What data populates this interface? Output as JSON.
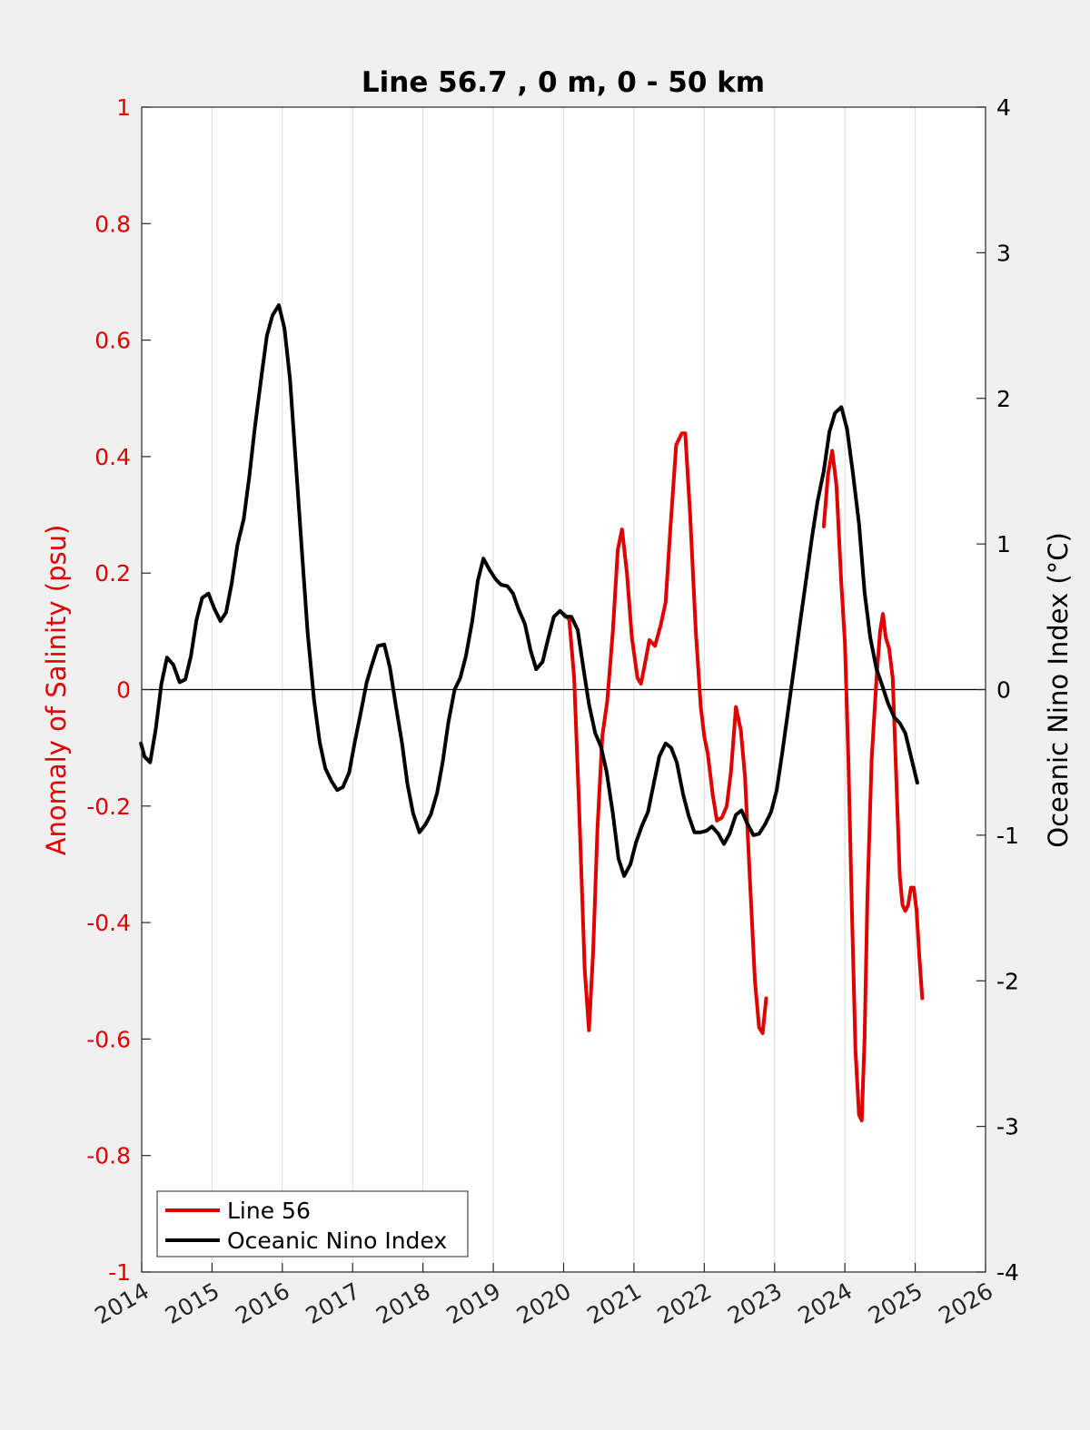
{
  "chart_data": {
    "type": "line",
    "title": "Line 56.7 , 0 m, 0 - 50 km",
    "x_axis": {
      "range": [
        2014,
        2026
      ],
      "ticks": [
        "2014",
        "2015",
        "2016",
        "2017",
        "2018",
        "2019",
        "2020",
        "2021",
        "2022",
        "2023",
        "2024",
        "2025",
        "2026"
      ],
      "grid": true
    },
    "y_left": {
      "label": "Anomaly of Salinity (psu)",
      "range": [
        -1,
        1
      ],
      "ticks": [
        "-1",
        "-0.8",
        "-0.6",
        "-0.4",
        "-0.2",
        "0",
        "0.2",
        "0.4",
        "0.6",
        "0.8",
        "1"
      ],
      "color": "#e00000"
    },
    "y_right": {
      "label": "Oceanic Nino Index (°C)",
      "range": [
        -4,
        4
      ],
      "ticks": [
        "-4",
        "-3",
        "-2",
        "-1",
        "0",
        "1",
        "2",
        "3",
        "4"
      ],
      "color": "#000000"
    },
    "zero_line": true,
    "legend_position": "bottom-left",
    "series": [
      {
        "name": "Line 56",
        "axis": "left",
        "color": "#e00000",
        "segments": [
          [
            [
              2020.0,
              0.13
            ],
            [
              2020.08,
              0.12
            ],
            [
              2020.15,
              0.02
            ],
            [
              2020.22,
              -0.2
            ],
            [
              2020.3,
              -0.48
            ],
            [
              2020.36,
              -0.585
            ],
            [
              2020.42,
              -0.45
            ],
            [
              2020.48,
              -0.24
            ],
            [
              2020.55,
              -0.08
            ],
            [
              2020.62,
              -0.02
            ],
            [
              2020.7,
              0.1
            ],
            [
              2020.77,
              0.24
            ],
            [
              2020.83,
              0.275
            ],
            [
              2020.9,
              0.2
            ],
            [
              2020.97,
              0.09
            ],
            [
              2021.05,
              0.02
            ],
            [
              2021.1,
              0.01
            ],
            [
              2021.15,
              0.04
            ],
            [
              2021.22,
              0.085
            ],
            [
              2021.3,
              0.075
            ],
            [
              2021.38,
              0.11
            ],
            [
              2021.45,
              0.15
            ],
            [
              2021.52,
              0.28
            ],
            [
              2021.6,
              0.42
            ],
            [
              2021.68,
              0.44
            ],
            [
              2021.73,
              0.44
            ],
            [
              2021.8,
              0.3
            ],
            [
              2021.88,
              0.1
            ],
            [
              2021.95,
              -0.03
            ],
            [
              2022.0,
              -0.08
            ],
            [
              2022.05,
              -0.11
            ],
            [
              2022.12,
              -0.18
            ],
            [
              2022.18,
              -0.225
            ],
            [
              2022.25,
              -0.22
            ],
            [
              2022.32,
              -0.2
            ],
            [
              2022.38,
              -0.14
            ],
            [
              2022.45,
              -0.03
            ],
            [
              2022.52,
              -0.07
            ],
            [
              2022.58,
              -0.15
            ],
            [
              2022.65,
              -0.33
            ],
            [
              2022.72,
              -0.5
            ],
            [
              2022.78,
              -0.58
            ],
            [
              2022.83,
              -0.59
            ],
            [
              2022.88,
              -0.53
            ]
          ],
          [
            [
              2023.7,
              0.28
            ],
            [
              2023.76,
              0.37
            ],
            [
              2023.82,
              0.41
            ],
            [
              2023.88,
              0.35
            ],
            [
              2023.95,
              0.18
            ],
            [
              2024.0,
              0.08
            ],
            [
              2024.05,
              -0.12
            ],
            [
              2024.1,
              -0.38
            ],
            [
              2024.15,
              -0.62
            ],
            [
              2024.2,
              -0.73
            ],
            [
              2024.24,
              -0.74
            ],
            [
              2024.28,
              -0.6
            ],
            [
              2024.32,
              -0.36
            ],
            [
              2024.38,
              -0.12
            ],
            [
              2024.45,
              0.02
            ],
            [
              2024.5,
              0.1
            ],
            [
              2024.54,
              0.13
            ],
            [
              2024.58,
              0.09
            ],
            [
              2024.63,
              0.07
            ],
            [
              2024.68,
              0.02
            ],
            [
              2024.73,
              -0.15
            ],
            [
              2024.78,
              -0.32
            ],
            [
              2024.82,
              -0.37
            ],
            [
              2024.86,
              -0.38
            ],
            [
              2024.9,
              -0.37
            ],
            [
              2024.94,
              -0.34
            ],
            [
              2024.98,
              -0.34
            ],
            [
              2025.02,
              -0.38
            ],
            [
              2025.06,
              -0.46
            ],
            [
              2025.1,
              -0.53
            ]
          ]
        ]
      },
      {
        "name": "Oceanic Nino Index",
        "axis": "right",
        "color": "#000000",
        "segments": [
          [
            [
              2013.99,
              -0.37
            ],
            [
              2014.04,
              -0.46
            ],
            [
              2014.12,
              -0.5
            ],
            [
              2014.2,
              -0.27
            ],
            [
              2014.28,
              0.04
            ],
            [
              2014.36,
              0.22
            ],
            [
              2014.45,
              0.17
            ],
            [
              2014.54,
              0.05
            ],
            [
              2014.62,
              0.07
            ],
            [
              2014.7,
              0.23
            ],
            [
              2014.78,
              0.48
            ],
            [
              2014.86,
              0.63
            ],
            [
              2014.95,
              0.66
            ],
            [
              2015.03,
              0.56
            ],
            [
              2015.12,
              0.47
            ],
            [
              2015.2,
              0.53
            ],
            [
              2015.28,
              0.73
            ],
            [
              2015.36,
              0.99
            ],
            [
              2015.45,
              1.17
            ],
            [
              2015.53,
              1.46
            ],
            [
              2015.61,
              1.8
            ],
            [
              2015.7,
              2.14
            ],
            [
              2015.78,
              2.43
            ],
            [
              2015.86,
              2.57
            ],
            [
              2015.95,
              2.64
            ],
            [
              2016.03,
              2.48
            ],
            [
              2016.11,
              2.13
            ],
            [
              2016.2,
              1.5
            ],
            [
              2016.28,
              0.94
            ],
            [
              2016.36,
              0.39
            ],
            [
              2016.45,
              -0.07
            ],
            [
              2016.53,
              -0.36
            ],
            [
              2016.61,
              -0.54
            ],
            [
              2016.7,
              -0.63
            ],
            [
              2016.78,
              -0.69
            ],
            [
              2016.86,
              -0.67
            ],
            [
              2016.95,
              -0.57
            ],
            [
              2017.03,
              -0.36
            ],
            [
              2017.11,
              -0.17
            ],
            [
              2017.2,
              0.05
            ],
            [
              2017.28,
              0.18
            ],
            [
              2017.36,
              0.3
            ],
            [
              2017.45,
              0.31
            ],
            [
              2017.53,
              0.15
            ],
            [
              2017.61,
              -0.1
            ],
            [
              2017.7,
              -0.36
            ],
            [
              2017.78,
              -0.65
            ],
            [
              2017.86,
              -0.85
            ],
            [
              2017.95,
              -0.98
            ],
            [
              2018.03,
              -0.93
            ],
            [
              2018.11,
              -0.86
            ],
            [
              2018.2,
              -0.71
            ],
            [
              2018.28,
              -0.5
            ],
            [
              2018.36,
              -0.23
            ],
            [
              2018.45,
              0.0
            ],
            [
              2018.53,
              0.08
            ],
            [
              2018.61,
              0.23
            ],
            [
              2018.7,
              0.47
            ],
            [
              2018.78,
              0.75
            ],
            [
              2018.86,
              0.9
            ],
            [
              2018.95,
              0.82
            ],
            [
              2019.03,
              0.76
            ],
            [
              2019.11,
              0.72
            ],
            [
              2019.2,
              0.71
            ],
            [
              2019.28,
              0.66
            ],
            [
              2019.36,
              0.55
            ],
            [
              2019.45,
              0.45
            ],
            [
              2019.53,
              0.27
            ],
            [
              2019.61,
              0.14
            ],
            [
              2019.7,
              0.19
            ],
            [
              2019.78,
              0.35
            ],
            [
              2019.86,
              0.5
            ],
            [
              2019.95,
              0.54
            ],
            [
              2020.03,
              0.5
            ],
            [
              2020.11,
              0.5
            ],
            [
              2020.2,
              0.41
            ],
            [
              2020.28,
              0.15
            ],
            [
              2020.36,
              -0.1
            ],
            [
              2020.45,
              -0.3
            ],
            [
              2020.53,
              -0.39
            ],
            [
              2020.61,
              -0.56
            ],
            [
              2020.7,
              -0.85
            ],
            [
              2020.78,
              -1.16
            ],
            [
              2020.86,
              -1.28
            ],
            [
              2020.95,
              -1.2
            ],
            [
              2021.03,
              -1.05
            ],
            [
              2021.11,
              -0.94
            ],
            [
              2021.2,
              -0.84
            ],
            [
              2021.28,
              -0.65
            ],
            [
              2021.36,
              -0.46
            ],
            [
              2021.45,
              -0.37
            ],
            [
              2021.53,
              -0.4
            ],
            [
              2021.61,
              -0.5
            ],
            [
              2021.7,
              -0.72
            ],
            [
              2021.78,
              -0.87
            ],
            [
              2021.86,
              -0.98
            ],
            [
              2021.95,
              -0.98
            ],
            [
              2022.03,
              -0.97
            ],
            [
              2022.11,
              -0.94
            ],
            [
              2022.2,
              -0.99
            ],
            [
              2022.28,
              -1.06
            ],
            [
              2022.36,
              -0.99
            ],
            [
              2022.45,
              -0.86
            ],
            [
              2022.53,
              -0.83
            ],
            [
              2022.61,
              -0.92
            ],
            [
              2022.7,
              -1.0
            ],
            [
              2022.78,
              -0.99
            ],
            [
              2022.86,
              -0.93
            ],
            [
              2022.95,
              -0.84
            ],
            [
              2023.03,
              -0.69
            ],
            [
              2023.11,
              -0.43
            ],
            [
              2023.2,
              -0.12
            ],
            [
              2023.28,
              0.16
            ],
            [
              2023.36,
              0.45
            ],
            [
              2023.45,
              0.76
            ],
            [
              2023.53,
              1.04
            ],
            [
              2023.61,
              1.29
            ],
            [
              2023.7,
              1.5
            ],
            [
              2023.78,
              1.77
            ],
            [
              2023.86,
              1.9
            ],
            [
              2023.95,
              1.94
            ],
            [
              2024.03,
              1.79
            ],
            [
              2024.11,
              1.5
            ],
            [
              2024.2,
              1.14
            ],
            [
              2024.28,
              0.67
            ],
            [
              2024.36,
              0.36
            ],
            [
              2024.45,
              0.14
            ],
            [
              2024.53,
              0.03
            ],
            [
              2024.61,
              -0.09
            ],
            [
              2024.7,
              -0.19
            ],
            [
              2024.78,
              -0.23
            ],
            [
              2024.86,
              -0.3
            ],
            [
              2024.95,
              -0.48
            ],
            [
              2025.03,
              -0.64
            ]
          ]
        ]
      }
    ]
  }
}
